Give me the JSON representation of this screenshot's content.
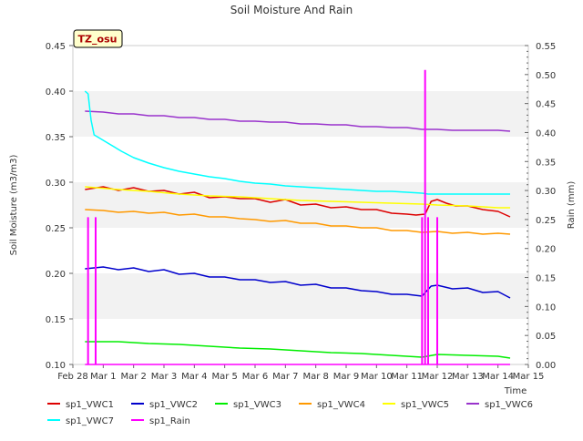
{
  "chart_data": {
    "type": "line",
    "title": "Soil Moisture And Rain",
    "site_label": "TZ_osu",
    "xlabel": "Time",
    "ylabel": "Soil Moisture (m3/m3)",
    "y2label": "Rain (mm)",
    "x_ticks": [
      "Feb 28",
      "Mar 1",
      "Mar 2",
      "Mar 3",
      "Mar 4",
      "Mar 5",
      "Mar 6",
      "Mar 7",
      "Mar 8",
      "Mar 9",
      "Mar 10",
      "Mar 11",
      "Mar 12",
      "Mar 13",
      "Mar 14",
      "Mar 15"
    ],
    "xlim": [
      0,
      15
    ],
    "ylim": [
      0.1,
      0.45
    ],
    "y_ticks": [
      "0.10",
      "0.15",
      "0.20",
      "0.25",
      "0.30",
      "0.35",
      "0.40",
      "0.45"
    ],
    "y2lim": [
      0.0,
      0.55
    ],
    "y2_ticks": [
      "0.00",
      "0.05",
      "0.10",
      "0.15",
      "0.20",
      "0.25",
      "0.30",
      "0.35",
      "0.40",
      "0.45",
      "0.50",
      "0.55"
    ],
    "grid": "horizontal bands",
    "legend_position": "bottom",
    "series": [
      {
        "name": "sp1_VWC1",
        "color": "#dd0000",
        "axis": "left",
        "x": [
          0.4,
          1.0,
          1.5,
          2.0,
          2.5,
          3.0,
          3.5,
          4.0,
          4.5,
          5.0,
          5.5,
          6.0,
          6.5,
          7.0,
          7.5,
          8.0,
          8.5,
          9.0,
          9.5,
          10.0,
          10.5,
          11.0,
          11.3,
          11.6,
          11.8,
          12.0,
          12.3,
          12.6,
          13.0,
          13.5,
          14.0,
          14.4
        ],
        "y": [
          0.292,
          0.295,
          0.291,
          0.294,
          0.29,
          0.291,
          0.287,
          0.289,
          0.283,
          0.284,
          0.282,
          0.282,
          0.278,
          0.281,
          0.275,
          0.276,
          0.272,
          0.273,
          0.27,
          0.27,
          0.266,
          0.265,
          0.264,
          0.265,
          0.279,
          0.281,
          0.277,
          0.274,
          0.274,
          0.27,
          0.268,
          0.262
        ]
      },
      {
        "name": "sp1_VWC2",
        "color": "#0000cc",
        "axis": "left",
        "x": [
          0.4,
          1.0,
          1.5,
          2.0,
          2.5,
          3.0,
          3.5,
          4.0,
          4.5,
          5.0,
          5.5,
          6.0,
          6.5,
          7.0,
          7.5,
          8.0,
          8.5,
          9.0,
          9.5,
          10.0,
          10.5,
          11.0,
          11.5,
          11.8,
          12.0,
          12.5,
          13.0,
          13.5,
          14.0,
          14.4
        ],
        "y": [
          0.205,
          0.207,
          0.204,
          0.206,
          0.202,
          0.204,
          0.199,
          0.2,
          0.196,
          0.196,
          0.193,
          0.193,
          0.19,
          0.191,
          0.187,
          0.188,
          0.184,
          0.184,
          0.181,
          0.18,
          0.177,
          0.177,
          0.175,
          0.186,
          0.187,
          0.183,
          0.184,
          0.179,
          0.18,
          0.173
        ]
      },
      {
        "name": "sp1_VWC3",
        "color": "#00ee00",
        "axis": "left",
        "x": [
          0.4,
          1.5,
          2.5,
          3.5,
          4.5,
          5.5,
          6.5,
          7.5,
          8.5,
          9.5,
          10.5,
          11.5,
          12.0,
          13.0,
          14.0,
          14.4
        ],
        "y": [
          0.125,
          0.125,
          0.123,
          0.122,
          0.12,
          0.118,
          0.117,
          0.115,
          0.113,
          0.112,
          0.11,
          0.108,
          0.111,
          0.11,
          0.109,
          0.107
        ]
      },
      {
        "name": "sp1_VWC4",
        "color": "#ff9900",
        "axis": "left",
        "x": [
          0.4,
          1.0,
          1.5,
          2.0,
          2.5,
          3.0,
          3.5,
          4.0,
          4.5,
          5.0,
          5.5,
          6.0,
          6.5,
          7.0,
          7.5,
          8.0,
          8.5,
          9.0,
          9.5,
          10.0,
          10.5,
          11.0,
          11.5,
          12.0,
          12.5,
          13.0,
          13.5,
          14.0,
          14.4
        ],
        "y": [
          0.27,
          0.269,
          0.267,
          0.268,
          0.266,
          0.267,
          0.264,
          0.265,
          0.262,
          0.262,
          0.26,
          0.259,
          0.257,
          0.258,
          0.255,
          0.255,
          0.252,
          0.252,
          0.25,
          0.25,
          0.247,
          0.247,
          0.245,
          0.246,
          0.244,
          0.245,
          0.243,
          0.244,
          0.243
        ]
      },
      {
        "name": "sp1_VWC5",
        "color": "#ffff00",
        "axis": "left",
        "x": [
          0.4,
          1.5,
          2.5,
          3.5,
          4.5,
          5.5,
          6.5,
          7.5,
          8.5,
          9.5,
          10.5,
          11.5,
          12.0,
          13.0,
          14.0,
          14.4
        ],
        "y": [
          0.295,
          0.292,
          0.29,
          0.287,
          0.285,
          0.284,
          0.282,
          0.28,
          0.279,
          0.278,
          0.277,
          0.276,
          0.275,
          0.274,
          0.272,
          0.272
        ]
      },
      {
        "name": "sp1_VWC6",
        "color": "#9933cc",
        "axis": "left",
        "x": [
          0.4,
          1.0,
          1.5,
          2.0,
          2.5,
          3.0,
          3.5,
          4.0,
          4.5,
          5.0,
          5.5,
          6.0,
          6.5,
          7.0,
          7.5,
          8.0,
          8.5,
          9.0,
          9.5,
          10.0,
          10.5,
          11.0,
          11.5,
          12.0,
          12.5,
          13.0,
          13.5,
          14.0,
          14.4
        ],
        "y": [
          0.378,
          0.377,
          0.375,
          0.375,
          0.373,
          0.373,
          0.371,
          0.371,
          0.369,
          0.369,
          0.367,
          0.367,
          0.366,
          0.366,
          0.364,
          0.364,
          0.363,
          0.363,
          0.361,
          0.361,
          0.36,
          0.36,
          0.358,
          0.358,
          0.357,
          0.357,
          0.357,
          0.357,
          0.356
        ]
      },
      {
        "name": "sp1_VWC7",
        "color": "#00ffff",
        "axis": "left",
        "x": [
          0.4,
          0.5,
          0.6,
          0.7,
          0.9,
          1.2,
          1.6,
          2.0,
          2.5,
          3.0,
          3.5,
          4.0,
          4.5,
          5.0,
          5.5,
          6.0,
          6.5,
          7.0,
          7.5,
          8.0,
          8.5,
          9.0,
          9.5,
          10.0,
          10.5,
          11.0,
          11.5,
          11.7,
          12.0,
          13.0,
          14.0,
          14.4
        ],
        "y": [
          0.4,
          0.397,
          0.368,
          0.352,
          0.348,
          0.342,
          0.334,
          0.327,
          0.321,
          0.316,
          0.312,
          0.309,
          0.306,
          0.304,
          0.301,
          0.299,
          0.298,
          0.296,
          0.295,
          0.294,
          0.293,
          0.292,
          0.291,
          0.29,
          0.29,
          0.289,
          0.288,
          0.287,
          0.287,
          0.287,
          0.287,
          0.287
        ]
      }
    ],
    "rain_series": {
      "name": "sp1_Rain",
      "color": "#ff00ff",
      "axis": "right",
      "events": [
        {
          "x": 0.5,
          "y": 0.254
        },
        {
          "x": 0.75,
          "y": 0.254
        },
        {
          "x": 11.5,
          "y": 0.254
        },
        {
          "x": 11.6,
          "y": 0.508
        },
        {
          "x": 11.7,
          "y": 0.254
        },
        {
          "x": 12.0,
          "y": 0.254
        }
      ]
    },
    "legend": [
      "sp1_VWC1",
      "sp1_VWC2",
      "sp1_VWC3",
      "sp1_VWC4",
      "sp1_VWC5",
      "sp1_VWC6",
      "sp1_VWC7",
      "sp1_Rain"
    ]
  }
}
